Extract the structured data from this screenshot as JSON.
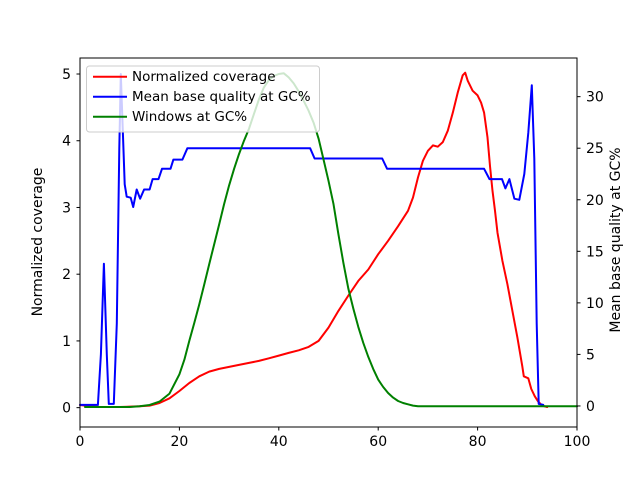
{
  "figure": {
    "background": "#ffffff",
    "frame_color": "#000000"
  },
  "legend": {
    "border_color": "#cccccc",
    "background": "rgba(255,255,255,0.8)",
    "position": "upper left"
  },
  "chart_data": {
    "type": "line",
    "title": "",
    "xlabel": "",
    "grid": false,
    "legend_position": "upper left",
    "x_axis": {
      "range": [
        0,
        100
      ],
      "lim": [
        -5,
        105
      ],
      "ticks": [
        "0",
        "20",
        "40",
        "60",
        "80",
        "100"
      ],
      "tick_values": [
        0,
        20,
        40,
        60,
        80,
        100
      ]
    },
    "left_axis": {
      "label": "Normalized coverage",
      "ticks": [
        "0",
        "1",
        "2",
        "3",
        "4",
        "5"
      ],
      "tick_values": [
        0,
        1,
        2,
        3,
        4,
        5
      ],
      "lim": [
        -0.29,
        5.24
      ]
    },
    "right_axis": {
      "label": "Mean base quality at GC%",
      "ticks": [
        "0",
        "5",
        "10",
        "15",
        "20",
        "25",
        "30"
      ],
      "tick_values": [
        0,
        5,
        10,
        15,
        20,
        25,
        30
      ],
      "lim": [
        -2.04,
        33.75
      ]
    },
    "series": [
      {
        "name": "Normalized coverage",
        "color": "#ff0000",
        "axis": "left",
        "points": [
          [
            0,
            0.04
          ],
          [
            1,
            0.03
          ],
          [
            2,
            0.02
          ],
          [
            4,
            0.01
          ],
          [
            8,
            0.01
          ],
          [
            12,
            0.02
          ],
          [
            14,
            0.03
          ],
          [
            16,
            0.07
          ],
          [
            18,
            0.14
          ],
          [
            20,
            0.25
          ],
          [
            22,
            0.37
          ],
          [
            24,
            0.47
          ],
          [
            26,
            0.54
          ],
          [
            28,
            0.58
          ],
          [
            30,
            0.61
          ],
          [
            32,
            0.64
          ],
          [
            34,
            0.67
          ],
          [
            36,
            0.7
          ],
          [
            38,
            0.74
          ],
          [
            40,
            0.78
          ],
          [
            42,
            0.82
          ],
          [
            44,
            0.86
          ],
          [
            46,
            0.91
          ],
          [
            48,
            1.0
          ],
          [
            50,
            1.2
          ],
          [
            52,
            1.45
          ],
          [
            54,
            1.68
          ],
          [
            56,
            1.9
          ],
          [
            58,
            2.07
          ],
          [
            60,
            2.3
          ],
          [
            62,
            2.5
          ],
          [
            64,
            2.72
          ],
          [
            66,
            2.95
          ],
          [
            67,
            3.15
          ],
          [
            68,
            3.45
          ],
          [
            69,
            3.7
          ],
          [
            70,
            3.85
          ],
          [
            71,
            3.93
          ],
          [
            72,
            3.91
          ],
          [
            73,
            3.98
          ],
          [
            74,
            4.15
          ],
          [
            75,
            4.42
          ],
          [
            76,
            4.72
          ],
          [
            77,
            4.98
          ],
          [
            77.5,
            5.02
          ],
          [
            78,
            4.9
          ],
          [
            79,
            4.75
          ],
          [
            80,
            4.68
          ],
          [
            80.7,
            4.57
          ],
          [
            81.3,
            4.42
          ],
          [
            82,
            4.05
          ],
          [
            82.5,
            3.62
          ],
          [
            83,
            3.25
          ],
          [
            83.5,
            2.95
          ],
          [
            84,
            2.62
          ],
          [
            85,
            2.2
          ],
          [
            86,
            1.85
          ],
          [
            87,
            1.45
          ],
          [
            88,
            1.05
          ],
          [
            89,
            0.62
          ],
          [
            89.3,
            0.47
          ],
          [
            90.2,
            0.44
          ],
          [
            90.8,
            0.28
          ],
          [
            91.5,
            0.17
          ],
          [
            92.2,
            0.09
          ],
          [
            93,
            0.03
          ],
          [
            94,
            0.01
          ]
        ]
      },
      {
        "name": "Mean base quality at GC%",
        "color": "#0000ff",
        "axis": "right",
        "points": [
          [
            0,
            0.1
          ],
          [
            3.6,
            0.1
          ],
          [
            4.2,
            5
          ],
          [
            4.8,
            13.8
          ],
          [
            5.4,
            5
          ],
          [
            5.8,
            0.2
          ],
          [
            6.8,
            0.2
          ],
          [
            7.4,
            8
          ],
          [
            7.9,
            25
          ],
          [
            8.2,
            32.2
          ],
          [
            8.6,
            27
          ],
          [
            9.0,
            21.5
          ],
          [
            9.4,
            20.3
          ],
          [
            10.2,
            20.2
          ],
          [
            10.7,
            19.3
          ],
          [
            11.4,
            21.0
          ],
          [
            12.1,
            20.1
          ],
          [
            12.9,
            21.0
          ],
          [
            14.0,
            21.0
          ],
          [
            14.6,
            22.0
          ],
          [
            15.8,
            22.0
          ],
          [
            16.5,
            23.0
          ],
          [
            18.2,
            23.0
          ],
          [
            18.8,
            23.9
          ],
          [
            20.6,
            23.9
          ],
          [
            21.6,
            25.0
          ],
          [
            46.3,
            25.0
          ],
          [
            47.2,
            24.0
          ],
          [
            60.8,
            24.0
          ],
          [
            61.8,
            23.0
          ],
          [
            81.3,
            23.0
          ],
          [
            82.4,
            22.0
          ],
          [
            84.9,
            22.0
          ],
          [
            85.6,
            21.1
          ],
          [
            86.4,
            22.0
          ],
          [
            87.4,
            20.1
          ],
          [
            88.4,
            20.0
          ],
          [
            89.4,
            22.5
          ],
          [
            90.2,
            26.5
          ],
          [
            90.9,
            31.1
          ],
          [
            91.4,
            24.0
          ],
          [
            91.9,
            8.0
          ],
          [
            92.3,
            0.2
          ],
          [
            93.2,
            0.1
          ]
        ]
      },
      {
        "name": "Windows at GC%",
        "color": "#008000",
        "axis": "left",
        "points": [
          [
            1,
            0.01
          ],
          [
            6,
            0.01
          ],
          [
            10,
            0.01
          ],
          [
            12,
            0.02
          ],
          [
            14,
            0.04
          ],
          [
            16,
            0.09
          ],
          [
            18,
            0.21
          ],
          [
            20,
            0.5
          ],
          [
            21,
            0.72
          ],
          [
            22,
            1.0
          ],
          [
            23,
            1.27
          ],
          [
            24,
            1.55
          ],
          [
            25,
            1.85
          ],
          [
            26,
            2.15
          ],
          [
            27,
            2.45
          ],
          [
            28,
            2.75
          ],
          [
            29,
            3.05
          ],
          [
            30,
            3.33
          ],
          [
            31,
            3.58
          ],
          [
            32,
            3.8
          ],
          [
            33,
            4.0
          ],
          [
            34,
            4.18
          ],
          [
            35,
            4.4
          ],
          [
            36,
            4.62
          ],
          [
            37,
            4.8
          ],
          [
            38,
            4.91
          ],
          [
            39,
            4.97
          ],
          [
            40,
            5.0
          ],
          [
            41,
            5.01
          ],
          [
            42,
            4.95
          ],
          [
            43,
            4.86
          ],
          [
            44,
            4.74
          ],
          [
            45,
            4.6
          ],
          [
            46,
            4.45
          ],
          [
            47,
            4.27
          ],
          [
            48,
            4.03
          ],
          [
            49,
            3.72
          ],
          [
            50,
            3.4
          ],
          [
            51,
            3.05
          ],
          [
            52,
            2.6
          ],
          [
            53,
            2.17
          ],
          [
            54,
            1.78
          ],
          [
            55,
            1.48
          ],
          [
            56,
            1.21
          ],
          [
            57,
            0.97
          ],
          [
            58,
            0.76
          ],
          [
            59,
            0.58
          ],
          [
            60,
            0.42
          ],
          [
            61,
            0.31
          ],
          [
            62,
            0.22
          ],
          [
            63,
            0.15
          ],
          [
            64,
            0.1
          ],
          [
            65,
            0.07
          ],
          [
            66,
            0.05
          ],
          [
            67,
            0.03
          ],
          [
            68,
            0.02
          ],
          [
            70,
            0.02
          ],
          [
            75,
            0.02
          ],
          [
            80,
            0.02
          ],
          [
            85,
            0.02
          ],
          [
            90,
            0.02
          ],
          [
            95,
            0.02
          ],
          [
            100,
            0.02
          ]
        ]
      }
    ]
  }
}
